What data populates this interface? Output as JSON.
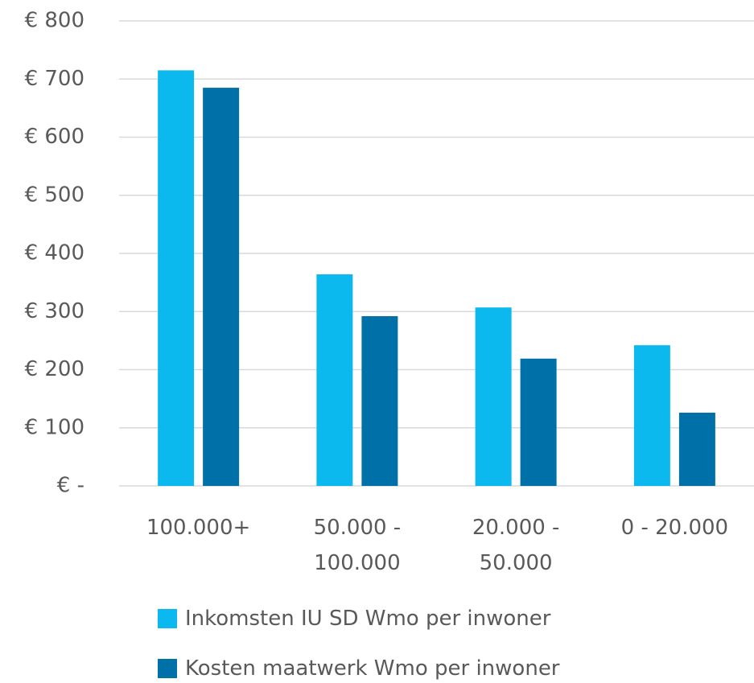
{
  "chart_data": {
    "type": "bar",
    "categories": [
      "100.000+",
      "50.000 - 100.000",
      "20.000 - 50.000",
      "0 - 20.000"
    ],
    "series": [
      {
        "name": "Inkomsten IU SD Wmo per inwoner",
        "color": "#0bb9ef",
        "values": [
          715,
          364,
          307,
          242
        ]
      },
      {
        "name": "Kosten maatwerk Wmo per inwoner",
        "color": "#0070a8",
        "values": [
          685,
          292,
          219,
          126
        ]
      }
    ],
    "ylim": [
      0,
      800
    ],
    "yticks": [
      {
        "value": 0,
        "label": "€ -"
      },
      {
        "value": 100,
        "label": "€ 100"
      },
      {
        "value": 200,
        "label": "€ 200"
      },
      {
        "value": 300,
        "label": "€ 300"
      },
      {
        "value": 400,
        "label": "€ 400"
      },
      {
        "value": 500,
        "label": "€ 500"
      },
      {
        "value": 600,
        "label": "€ 600"
      },
      {
        "value": 700,
        "label": "€ 700"
      },
      {
        "value": 800,
        "label": "€ 800"
      }
    ],
    "grid": true,
    "legend": "bottom"
  }
}
